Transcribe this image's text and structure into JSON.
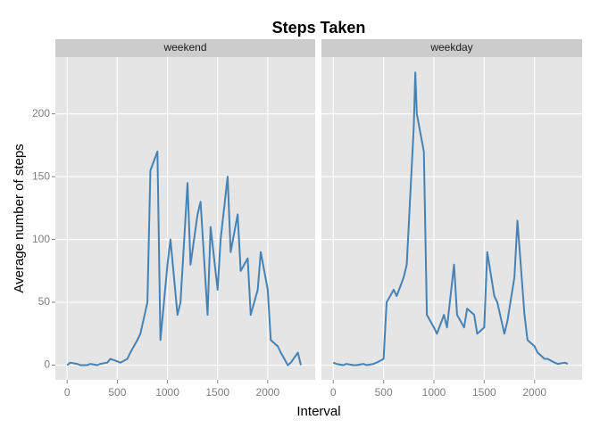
{
  "chart_data": {
    "type": "line",
    "title": "Steps Taken",
    "x_label": "Interval",
    "y_label": "Average number of steps",
    "color": "#4682b4",
    "grid": true,
    "xlim": [
      -117.75,
      2472.75
    ],
    "xticks": [
      0,
      500,
      1000,
      1500,
      2000
    ],
    "ylim": [
      -11.7,
      245.2
    ],
    "yticks": [
      0,
      50,
      100,
      150,
      200
    ],
    "facets": [
      {
        "name": "weekend",
        "x": [
          0,
          30,
          100,
          130,
          200,
          230,
          300,
          330,
          400,
          430,
          500,
          530,
          600,
          630,
          700,
          730,
          800,
          830,
          900,
          930,
          1000,
          1030,
          1100,
          1130,
          1200,
          1230,
          1300,
          1330,
          1400,
          1430,
          1500,
          1530,
          1600,
          1630,
          1700,
          1730,
          1800,
          1830,
          1900,
          1930,
          2000,
          2030,
          2100,
          2130,
          2200,
          2230,
          2300,
          2330
        ],
        "values": [
          0,
          2,
          1,
          0,
          0,
          1,
          0,
          1,
          2,
          5,
          3,
          2,
          5,
          10,
          20,
          25,
          50,
          155,
          170,
          20,
          80,
          100,
          40,
          50,
          145,
          80,
          120,
          130,
          40,
          110,
          60,
          100,
          150,
          90,
          120,
          75,
          85,
          40,
          60,
          90,
          60,
          20,
          15,
          10,
          0,
          2,
          10,
          0
        ]
      },
      {
        "name": "weekday",
        "x": [
          0,
          30,
          100,
          130,
          200,
          230,
          300,
          330,
          400,
          430,
          500,
          530,
          600,
          630,
          700,
          730,
          800,
          815,
          830,
          900,
          930,
          1000,
          1030,
          1100,
          1130,
          1200,
          1230,
          1300,
          1330,
          1400,
          1430,
          1500,
          1530,
          1600,
          1630,
          1700,
          1730,
          1800,
          1830,
          1900,
          1930,
          2000,
          2030,
          2100,
          2130,
          2200,
          2230,
          2300,
          2330
        ],
        "values": [
          2,
          1,
          0,
          1,
          0,
          0,
          1,
          0,
          1,
          2,
          5,
          50,
          60,
          55,
          70,
          80,
          190,
          233,
          200,
          170,
          40,
          30,
          25,
          40,
          30,
          80,
          40,
          30,
          45,
          40,
          25,
          30,
          90,
          55,
          50,
          25,
          35,
          70,
          115,
          40,
          20,
          15,
          10,
          5,
          5,
          2,
          1,
          2,
          1
        ]
      }
    ]
  }
}
